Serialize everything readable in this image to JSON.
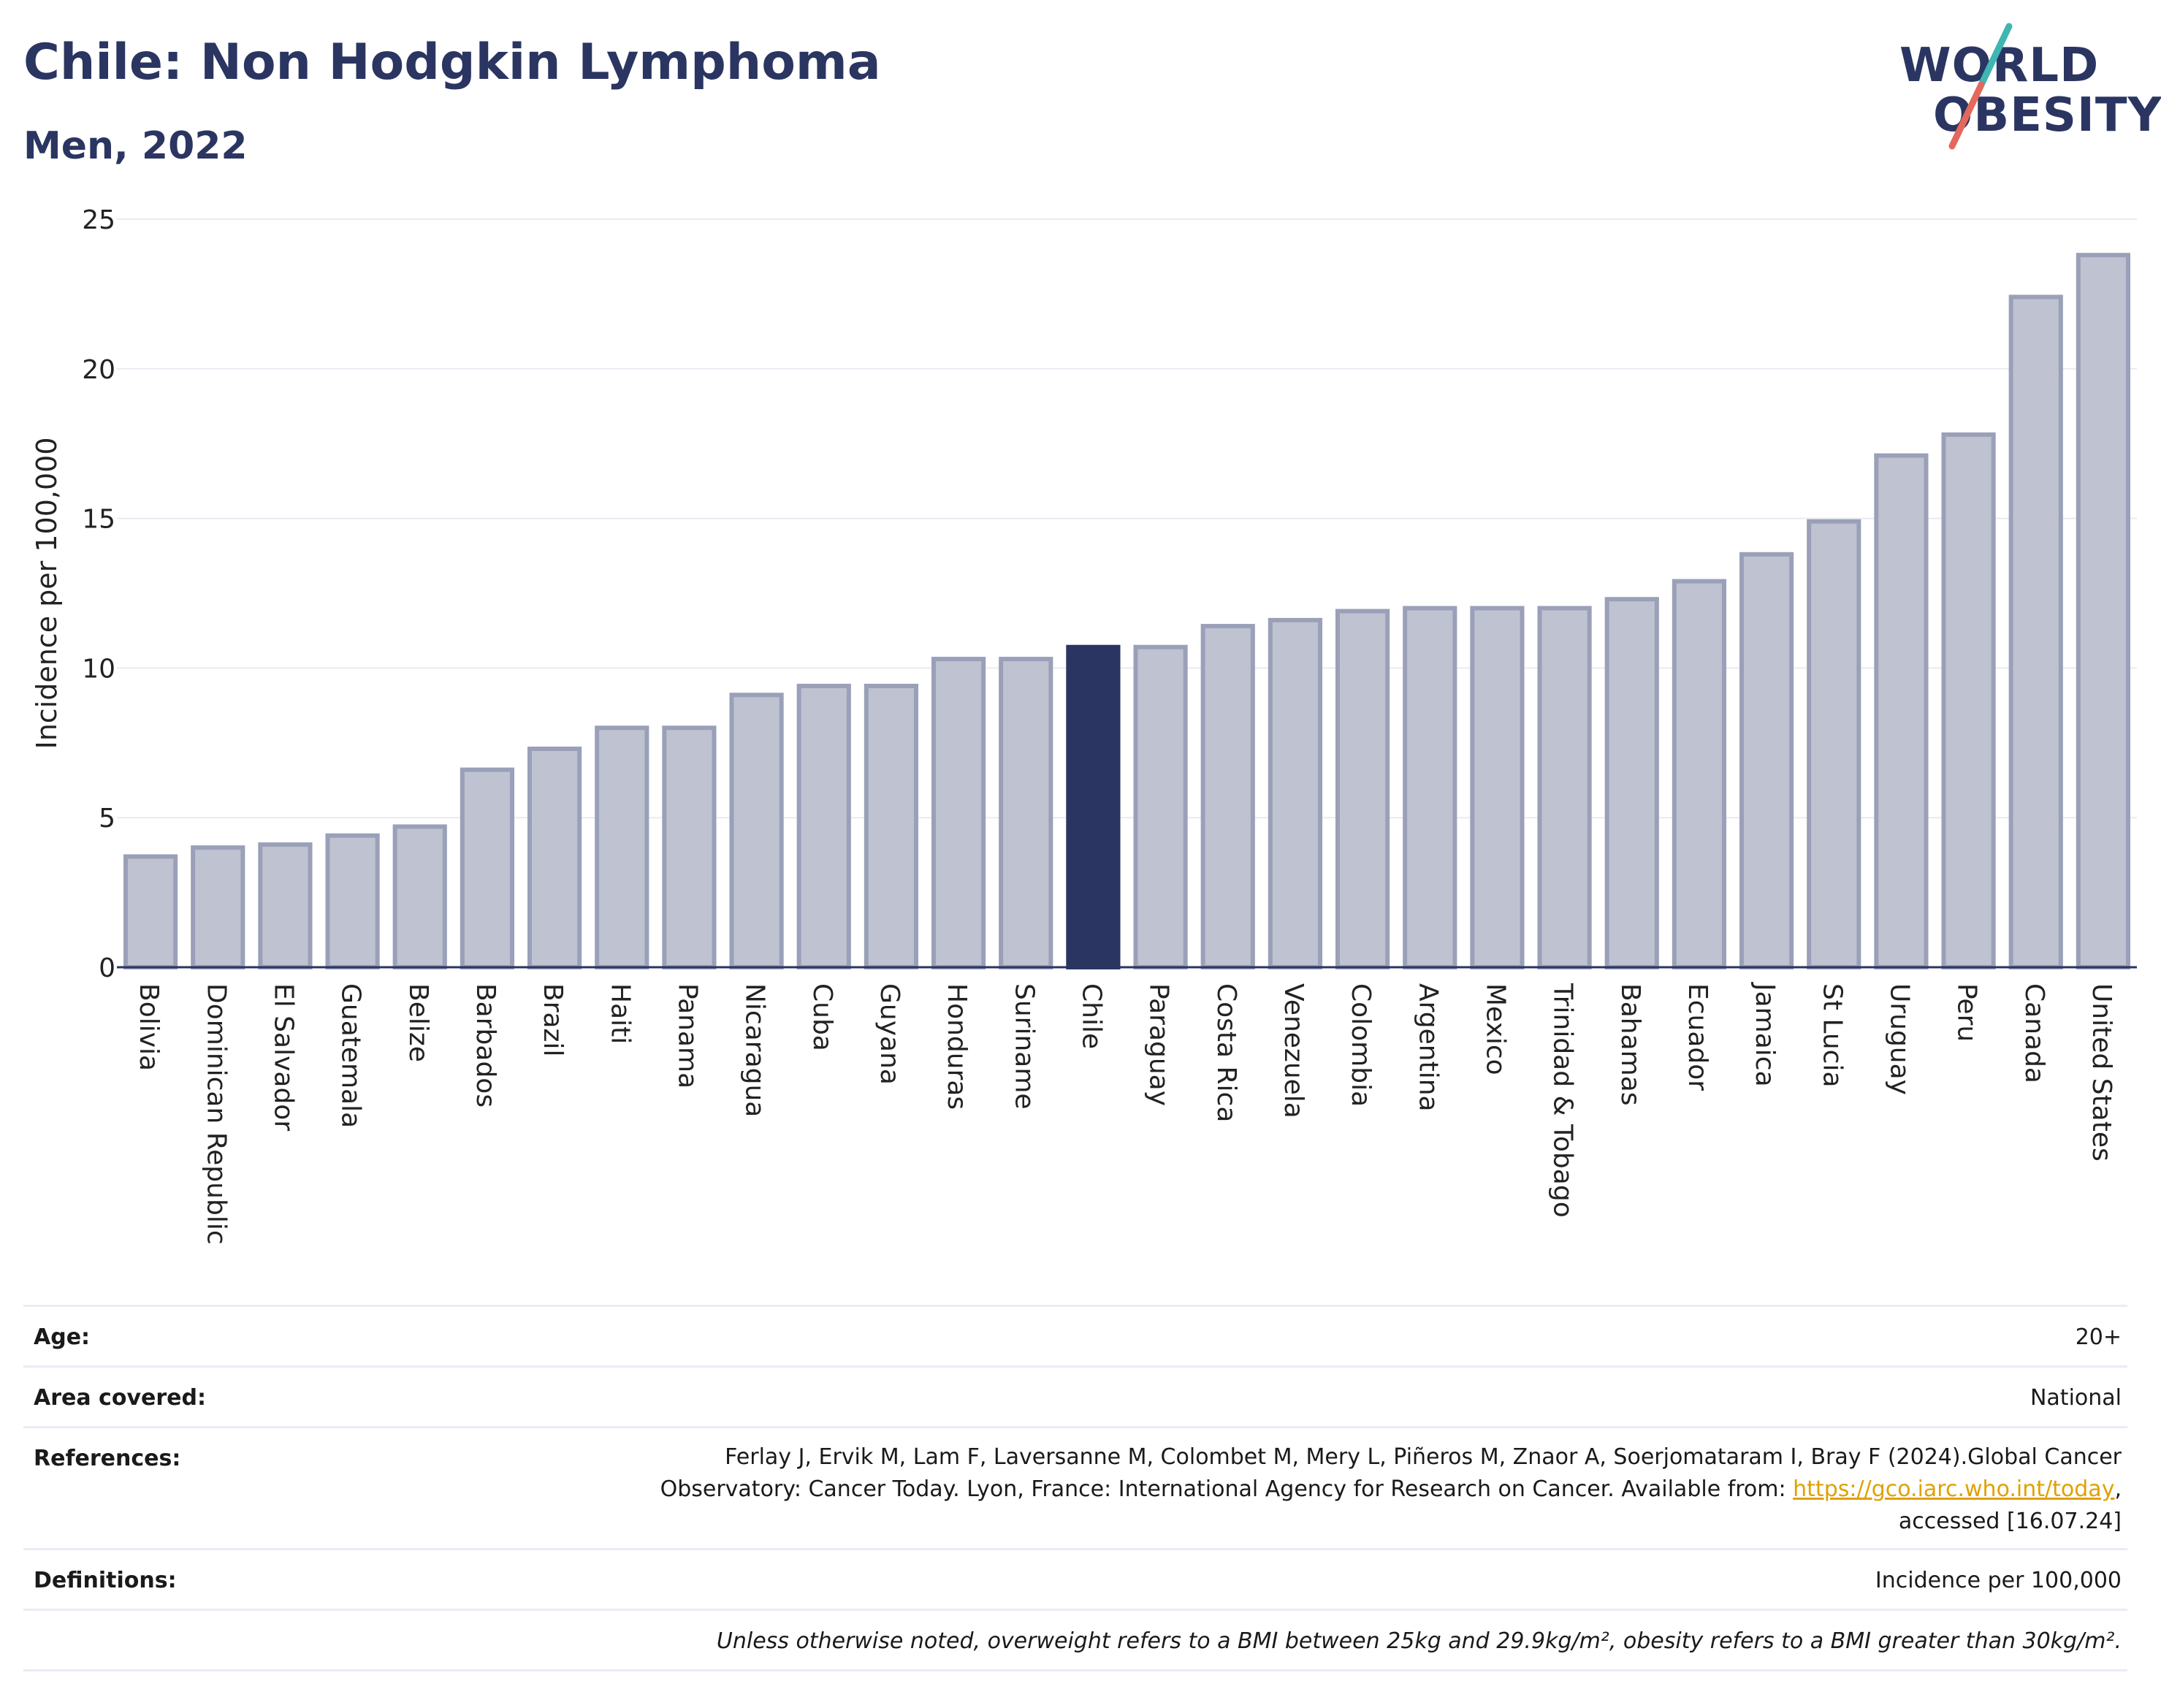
{
  "header": {
    "title": "Chile: Non Hodgkin Lymphoma",
    "subtitle": "Men, 2022"
  },
  "logo": {
    "line1": "WORLD",
    "line2": "OBESITY",
    "brand_color": "#2b3561",
    "slash_colors": [
      "#3fb6b2",
      "#e4685c"
    ]
  },
  "chart_data": {
    "type": "bar",
    "ylabel": "Incidence per 100,000",
    "xlabel": "",
    "ylim": [
      0,
      25
    ],
    "yticks": [
      0,
      5,
      10,
      15,
      20,
      25
    ],
    "grid": true,
    "highlight": "Chile",
    "colors": {
      "bar_fill": "#bfc2d0",
      "bar_stroke": "#9aa0b8",
      "highlight": "#2b3561",
      "grid": "#e9ebf2",
      "axis": "#2b3561"
    },
    "categories": [
      "Bolivia",
      "Dominican Republic",
      "El Salvador",
      "Guatemala",
      "Belize",
      "Barbados",
      "Brazil",
      "Haiti",
      "Panama",
      "Nicaragua",
      "Cuba",
      "Guyana",
      "Honduras",
      "Suriname",
      "Chile",
      "Paraguay",
      "Costa Rica",
      "Venezuela",
      "Colombia",
      "Argentina",
      "Mexico",
      "Trinidad & Tobago",
      "Bahamas",
      "Ecuador",
      "Jamaica",
      "St Lucia",
      "Uruguay",
      "Peru",
      "Canada",
      "United States"
    ],
    "values": [
      3.7,
      4.0,
      4.1,
      4.4,
      4.7,
      6.6,
      7.3,
      8.0,
      8.0,
      9.1,
      9.4,
      9.4,
      10.3,
      10.3,
      10.7,
      10.7,
      11.4,
      11.6,
      11.9,
      12.0,
      12.0,
      12.0,
      12.3,
      12.9,
      13.8,
      14.9,
      17.1,
      17.8,
      22.4,
      23.8
    ]
  },
  "info": {
    "age_label": "Age:",
    "age_value": "20+",
    "area_label": "Area covered:",
    "area_value": "National",
    "references_label": "References:",
    "references_line1": "Ferlay J, Ervik M, Lam F, Laversanne M, Colombet M, Mery L, Piñeros M, Znaor A, Soerjomataram I, Bray F (2024).Global Cancer",
    "references_line2": "Observatory: Cancer Today. Lyon, France: International Agency for Research on Cancer. Available from: ",
    "references_link": "https://gco.iarc.who.int/today",
    "references_line2_end": ",",
    "references_line3": "accessed [16.07.24]",
    "definitions_label": "Definitions:",
    "definitions_value": "Incidence per 100,000",
    "note": "Unless otherwise noted, overweight refers to a BMI between 25kg and 29.9kg/m², obesity refers to a BMI greater than 30kg/m²."
  }
}
